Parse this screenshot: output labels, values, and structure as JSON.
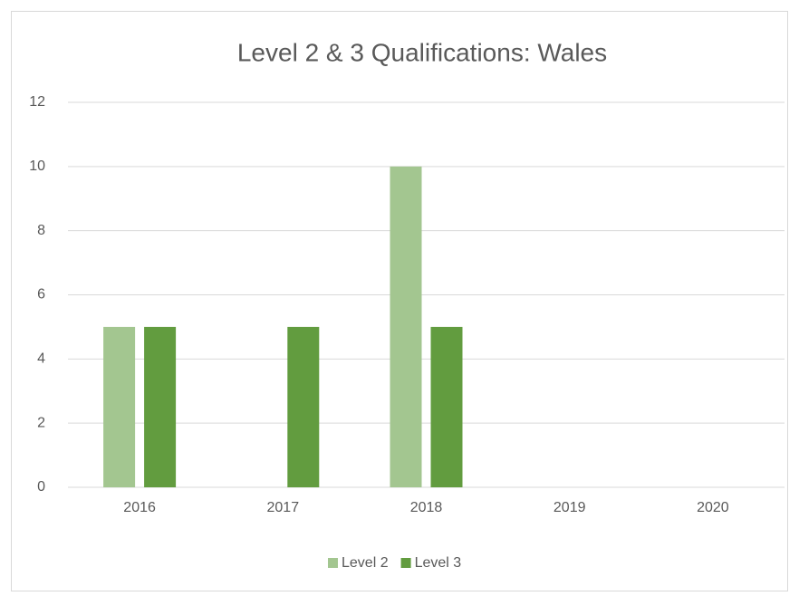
{
  "chart_data": {
    "type": "bar",
    "title": "Level 2 & 3 Qualifications: Wales",
    "categories": [
      "2016",
      "2017",
      "2018",
      "2019",
      "2020"
    ],
    "series": [
      {
        "name": "Level 2",
        "color": "#a3c690",
        "values": [
          5,
          0,
          10,
          0,
          0
        ]
      },
      {
        "name": "Level 3",
        "color": "#629c3f",
        "values": [
          5,
          5,
          5,
          0,
          0
        ]
      }
    ],
    "ylim": [
      0,
      12
    ],
    "yticks": [
      0,
      2,
      4,
      6,
      8,
      10,
      12
    ],
    "grid": true,
    "legend": "bottom"
  }
}
